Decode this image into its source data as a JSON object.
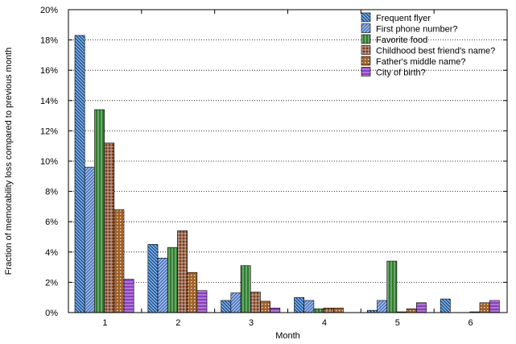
{
  "chart_data": {
    "type": "bar",
    "xlabel": "Month",
    "ylabel": "Fraction of memorability loss compared to previous month",
    "categories": [
      "1",
      "2",
      "3",
      "4",
      "5",
      "6"
    ],
    "ylim": [
      0,
      20
    ],
    "yticks": [
      "0%",
      "2%",
      "4%",
      "6%",
      "8%",
      "10%",
      "12%",
      "14%",
      "16%",
      "18%",
      "20%"
    ],
    "grid": true,
    "legend_position": "top-right",
    "series": [
      {
        "name": "Frequent flyer",
        "color": "#1f5fa8",
        "pattern": "diag-rev",
        "values": [
          18.3,
          4.5,
          0.8,
          1.0,
          0.15,
          0.9
        ]
      },
      {
        "name": "First phone number?",
        "color": "#4f7ac6",
        "pattern": "diag",
        "values": [
          9.6,
          3.6,
          1.3,
          0.8,
          0.8,
          0.0
        ]
      },
      {
        "name": "Favorite food",
        "color": "#2e7d2e",
        "pattern": "vert",
        "values": [
          13.4,
          4.3,
          3.1,
          0.25,
          3.4,
          0.0
        ]
      },
      {
        "name": "Childhood best friend's name?",
        "color": "#7a3b1c",
        "pattern": "grid",
        "values": [
          11.2,
          5.4,
          1.35,
          0.3,
          0.05,
          0.05
        ]
      },
      {
        "name": "Father's middle name?",
        "color": "#a0622a",
        "pattern": "dots",
        "values": [
          6.8,
          2.65,
          0.75,
          0.3,
          0.25,
          0.65
        ]
      },
      {
        "name": "City of birth?",
        "color": "#8a3fbf",
        "pattern": "hlines",
        "values": [
          2.2,
          1.45,
          0.3,
          0.0,
          0.65,
          0.8
        ]
      }
    ]
  }
}
